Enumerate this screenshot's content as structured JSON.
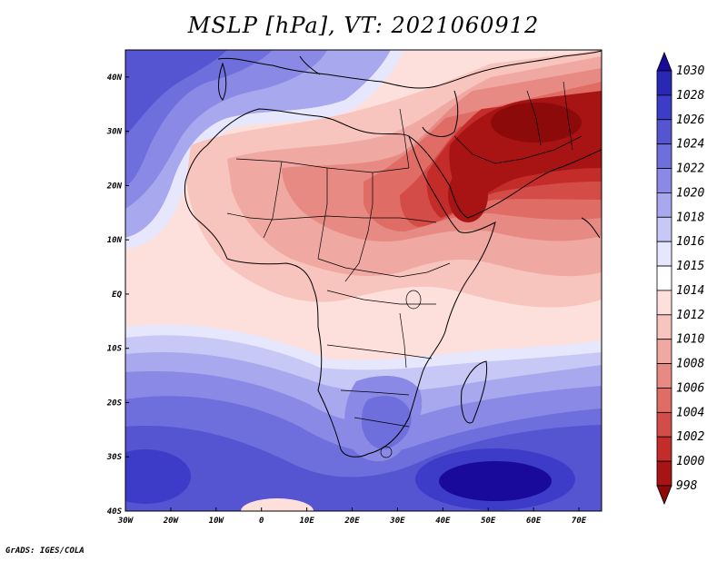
{
  "title": "MSLP [hPa], VT: 2021060912",
  "credit": "GrADS: IGES/COLA",
  "x_ticks": [
    "30W",
    "20W",
    "10W",
    "0",
    "10E",
    "20E",
    "30E",
    "40E",
    "50E",
    "60E",
    "70E"
  ],
  "y_ticks": [
    "40N",
    "30N",
    "20N",
    "10N",
    "EQ",
    "10S",
    "20S",
    "30S",
    "40S"
  ],
  "colorbar": {
    "levels": [
      "1030",
      "1028",
      "1026",
      "1024",
      "1022",
      "1020",
      "1018",
      "1016",
      "1015",
      "1014",
      "1012",
      "1010",
      "1008",
      "1006",
      "1004",
      "1002",
      "1000",
      "998"
    ],
    "colors": [
      "#1a0a9c",
      "#2828b4",
      "#3c3cc8",
      "#5555d2",
      "#6e6edc",
      "#8a8ae6",
      "#a8a8ee",
      "#c8c8f6",
      "#e6e6fc",
      "#ffffff",
      "#fde0dc",
      "#f8c4be",
      "#f0a8a2",
      "#e88a84",
      "#e06c66",
      "#d44c48",
      "#c42c2a",
      "#a81414",
      "#8c0a0a"
    ]
  },
  "map": {
    "lon_range": [
      -30,
      75
    ],
    "lat_range": [
      -40,
      45
    ],
    "field": "Mean sea level pressure",
    "units": "hPa",
    "valid_time": "2021060912"
  }
}
